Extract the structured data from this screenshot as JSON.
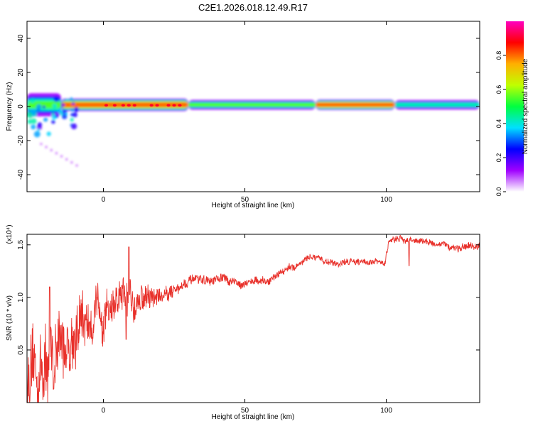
{
  "title": "C2E1.2026.018.12.49.R17",
  "chart_data": [
    {
      "type": "heatmap",
      "xlabel": "Height of straight line (km)",
      "ylabel": "Frequency (Hz)",
      "xlim": [
        -27,
        133
      ],
      "ylim": [
        -50,
        50
      ],
      "x_ticks": [
        0,
        50,
        100
      ],
      "y_ticks": [
        -40,
        -20,
        0,
        20,
        40
      ],
      "colorbar": {
        "label": "Normalized spectral amplitude",
        "range": [
          0.0,
          1.0
        ],
        "ticks": [
          0.0,
          0.2,
          0.4,
          0.6,
          0.8
        ],
        "tick_labels": [
          "0.0",
          "0.2",
          "0.4",
          "0.6",
          "0.8"
        ],
        "colormap": [
          "#ffffff",
          "#a000ff",
          "#0000ff",
          "#00e0ff",
          "#00ff40",
          "#c0ff00",
          "#ffb000",
          "#ff0000",
          "#ff00c0"
        ]
      },
      "band": {
        "center_freq_hz": 1,
        "segments": [
          {
            "x_start": -27,
            "x_end": -15,
            "half_width_hz": 6,
            "peak": 0.55
          },
          {
            "x_start": -15,
            "x_end": 30,
            "half_width_hz": 3,
            "peak": 0.95
          },
          {
            "x_start": 30,
            "x_end": 75,
            "half_width_hz": 2.5,
            "peak": 0.6
          },
          {
            "x_start": 75,
            "x_end": 103,
            "half_width_hz": 2.5,
            "peak": 0.97
          },
          {
            "x_start": 103,
            "x_end": 133,
            "half_width_hz": 2.5,
            "peak": 0.5
          }
        ],
        "hotspots_x": [
          1,
          4,
          7,
          9,
          11,
          17,
          19,
          23,
          25,
          27
        ]
      }
    },
    {
      "type": "line",
      "xlabel": "Height of straight line (km)",
      "ylabel": "SNR (10 * v/v)",
      "y_multiplier": "(x10⁴)",
      "xlim": [
        -27,
        133
      ],
      "ylim": [
        0,
        1.6
      ],
      "x_ticks": [
        0,
        50,
        100
      ],
      "y_ticks": [
        0.5,
        1.0,
        1.5
      ],
      "y_tick_labels": [
        "0.5",
        "1.0",
        "1.5"
      ],
      "color": "#e8302a",
      "trend": {
        "x": [
          -27,
          -22,
          -17,
          -12,
          -7,
          -2,
          3,
          8,
          13,
          18,
          23,
          28,
          33,
          38,
          43,
          48,
          53,
          58,
          63,
          68,
          73,
          78,
          83,
          88,
          93,
          98,
          99.5,
          101,
          106,
          111,
          116,
          121,
          126,
          133
        ],
        "y": [
          0.2,
          0.3,
          0.45,
          0.6,
          0.75,
          0.85,
          0.92,
          0.95,
          1.0,
          1.0,
          1.05,
          1.12,
          1.17,
          1.15,
          1.18,
          1.13,
          1.16,
          1.14,
          1.25,
          1.3,
          1.38,
          1.35,
          1.32,
          1.35,
          1.34,
          1.33,
          1.32,
          1.55,
          1.55,
          1.54,
          1.52,
          1.49,
          1.47,
          1.48
        ]
      },
      "noise": {
        "x": [
          -27,
          -20,
          -10,
          0,
          10,
          20,
          30,
          60,
          100,
          133
        ],
        "amplitude": [
          0.28,
          0.3,
          0.25,
          0.18,
          0.15,
          0.07,
          0.04,
          0.03,
          0.025,
          0.03
        ]
      },
      "spikes": [
        {
          "x": 9,
          "y": 1.48
        },
        {
          "x": 8,
          "y": 0.6
        },
        {
          "x": -19,
          "y": 1.1
        },
        {
          "x": 108,
          "y": 1.3
        }
      ]
    }
  ]
}
